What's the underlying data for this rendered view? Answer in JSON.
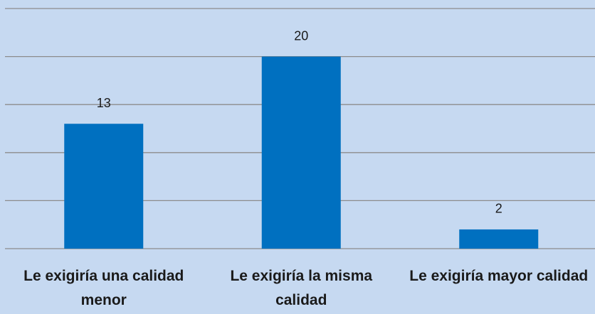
{
  "chart_data": {
    "type": "bar",
    "categories": [
      "Le exigiría una calidad menor",
      "Le exigiría la misma calidad",
      "Le exigiría mayor calidad"
    ],
    "values": [
      13,
      20,
      2
    ],
    "color": "#0070c0",
    "ylim": [
      0,
      25
    ],
    "yticks": [
      0,
      5,
      10,
      15,
      20,
      25
    ],
    "grid": true
  }
}
